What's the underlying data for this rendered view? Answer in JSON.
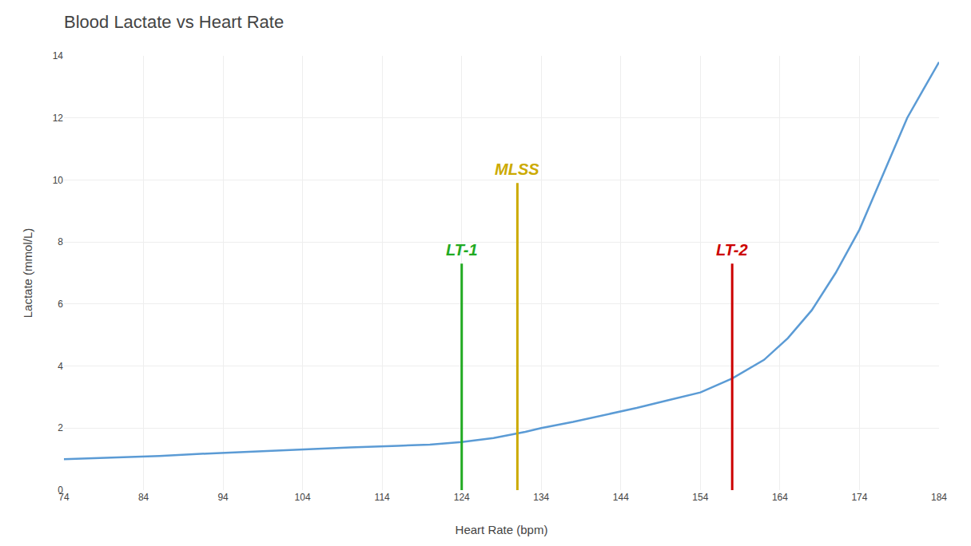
{
  "chart_data": {
    "type": "line",
    "title": "Blood Lactate vs Heart Rate",
    "xlabel": "Heart Rate (bpm)",
    "ylabel": "Lactate (mmol/L)",
    "x": [
      74,
      80,
      86,
      92,
      98,
      104,
      110,
      116,
      120,
      124,
      128,
      132,
      134,
      138,
      142,
      146,
      150,
      154,
      158,
      162,
      165,
      168,
      171,
      174,
      177,
      180,
      182,
      184
    ],
    "values": [
      1.0,
      1.05,
      1.1,
      1.18,
      1.25,
      1.32,
      1.38,
      1.43,
      1.47,
      1.55,
      1.68,
      1.88,
      2.0,
      2.2,
      2.42,
      2.65,
      2.9,
      3.15,
      3.6,
      4.2,
      4.9,
      5.8,
      7.0,
      8.4,
      10.2,
      12.0,
      12.9,
      13.8
    ],
    "color": "#5b9bd5",
    "xlim": [
      74,
      184
    ],
    "ylim": [
      0,
      14
    ],
    "xticks": [
      74,
      84,
      94,
      104,
      114,
      124,
      134,
      144,
      154,
      164,
      174,
      184
    ],
    "yticks": [
      0,
      2,
      4,
      6,
      8,
      10,
      12,
      14
    ],
    "grid": true,
    "vlines": [
      {
        "x": 124,
        "ymin": 0,
        "ymax": 7.3,
        "label": "LT-1",
        "color": "#22aa22"
      },
      {
        "x": 131,
        "ymin": 0,
        "ymax": 9.9,
        "label": "MLSS",
        "color": "#ccaa00"
      },
      {
        "x": 158,
        "ymin": 0,
        "ymax": 7.3,
        "label": "LT-2",
        "color": "#cc0000"
      }
    ]
  }
}
